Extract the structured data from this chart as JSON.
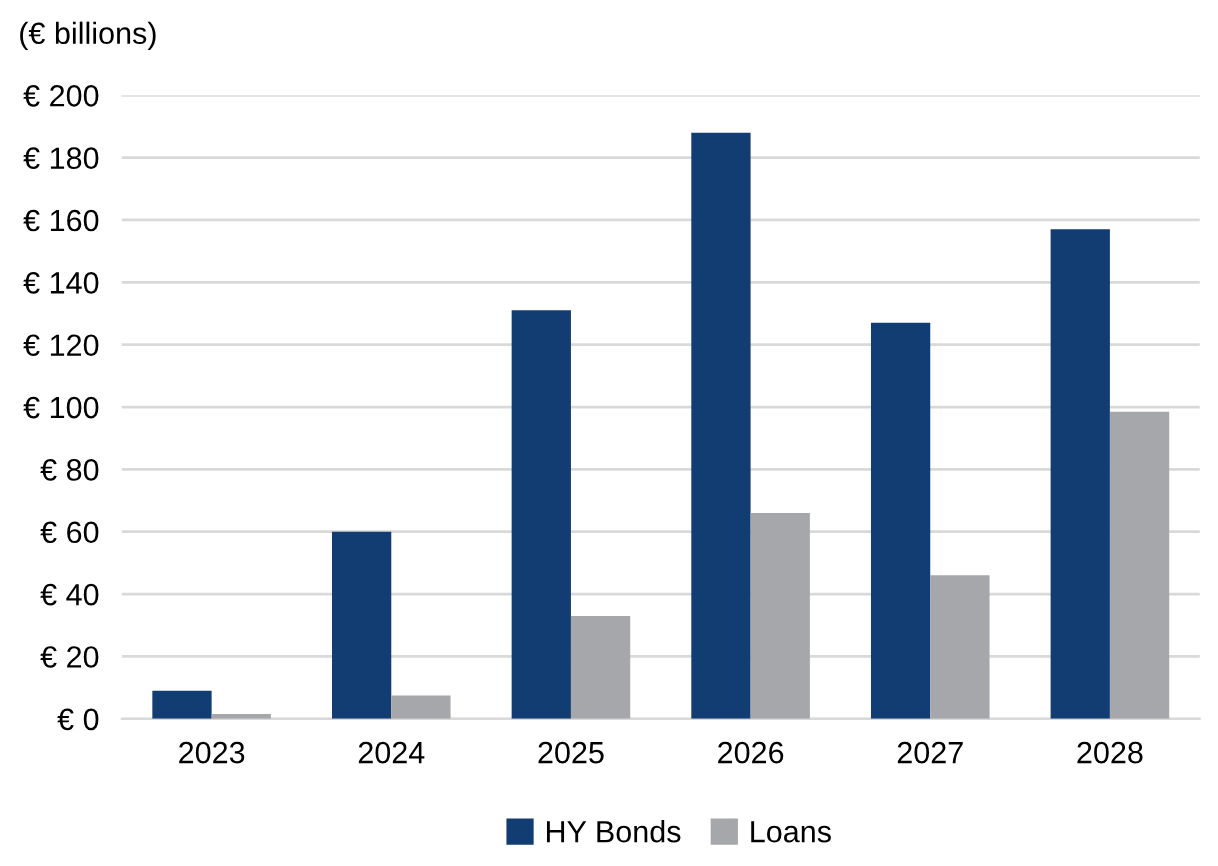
{
  "chart_data": {
    "type": "bar",
    "ylabel": "(€ billions)",
    "categories": [
      "2023",
      "2024",
      "2025",
      "2026",
      "2027",
      "2028"
    ],
    "series": [
      {
        "name": "HY Bonds",
        "color": "#123d73",
        "values": [
          9,
          60,
          131,
          188,
          127,
          157
        ]
      },
      {
        "name": "Loans",
        "color": "#a6a7ab",
        "values": [
          1.5,
          7.5,
          33,
          66,
          46,
          98.5
        ]
      }
    ],
    "ylim": [
      0,
      200
    ],
    "yticks": [
      {
        "value": 0,
        "label": "€ 0"
      },
      {
        "value": 20,
        "label": "€ 20"
      },
      {
        "value": 40,
        "label": "€ 40"
      },
      {
        "value": 60,
        "label": "€ 60"
      },
      {
        "value": 80,
        "label": "€ 80"
      },
      {
        "value": 100,
        "label": "€ 100"
      },
      {
        "value": 120,
        "label": "€ 120"
      },
      {
        "value": 140,
        "label": "€ 140"
      },
      {
        "value": 160,
        "label": "€ 160"
      },
      {
        "value": 180,
        "label": "€ 180"
      },
      {
        "value": 200,
        "label": "€ 200"
      }
    ],
    "grid": "y",
    "legend": "bottom"
  }
}
